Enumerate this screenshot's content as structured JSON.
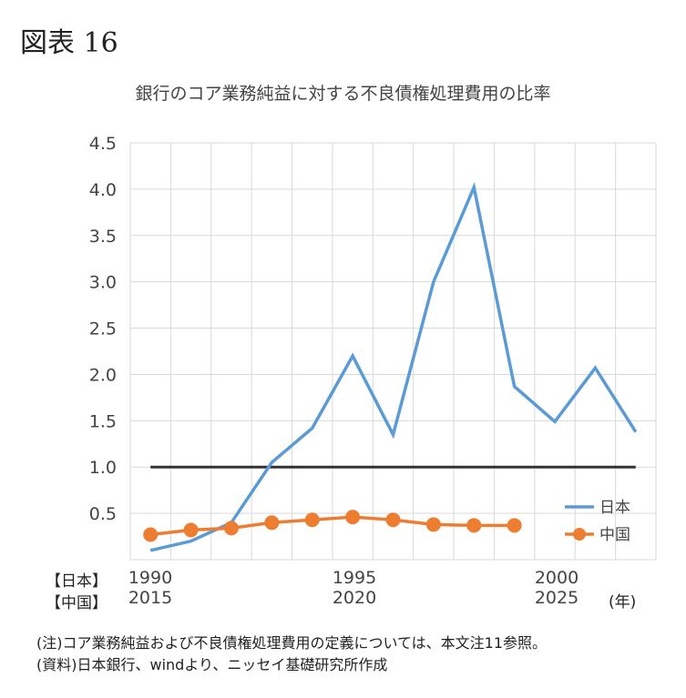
{
  "figure_label": "図表 16",
  "chart_data": {
    "type": "line",
    "title": "銀行のコア業務純益に対する不良債権処理費用の比率",
    "ylim": [
      0,
      4.5
    ],
    "y_ticks": [
      "0.5",
      "1.0",
      "1.5",
      "2.0",
      "2.5",
      "3.0",
      "3.5",
      "4.0",
      "4.5"
    ],
    "grid": true,
    "legend": "bottom-right",
    "x_row_labels": [
      "【日本】",
      "【中国】"
    ],
    "x_ticks_japan": [
      "1990",
      "1995",
      "2000"
    ],
    "x_ticks_china": [
      "2015",
      "2020",
      "2025"
    ],
    "x_unit": "(年)",
    "series": [
      {
        "name": "日本",
        "color": "#5b9bd5",
        "markers": false,
        "x": [
          1990,
          1991,
          1992,
          1993,
          1994,
          1995,
          1996,
          1997,
          1998,
          1999,
          2000,
          2001,
          2002
        ],
        "values": [
          0.1,
          0.2,
          0.4,
          1.05,
          1.42,
          2.2,
          1.35,
          3.0,
          4.02,
          1.87,
          1.49,
          2.07,
          1.38
        ]
      },
      {
        "name": "中国",
        "color": "#ed7d31",
        "markers": true,
        "x": [
          2015,
          2016,
          2017,
          2018,
          2019,
          2020,
          2021,
          2022,
          2023,
          2024
        ],
        "values": [
          0.27,
          0.32,
          0.34,
          0.4,
          0.43,
          0.46,
          0.43,
          0.38,
          0.37,
          0.37
        ]
      }
    ],
    "reference_line": {
      "value": 1.0,
      "color": "#333333"
    }
  },
  "notes": [
    "(注)コア業務純益および不良債権処理費用の定義については、本文注11参照。",
    "(資料)日本銀行、windより、ニッセイ基礎研究所作成"
  ]
}
